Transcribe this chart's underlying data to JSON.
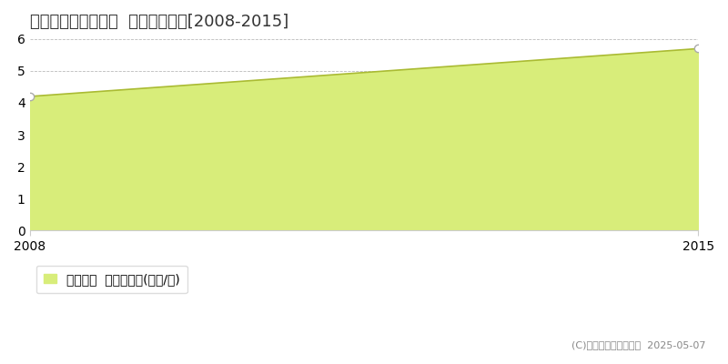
{
  "title": "東田川郡庄内町清川  住宅価格推移[2008-2015]",
  "x_values": [
    2008,
    2015
  ],
  "y_values": [
    4.2,
    5.7
  ],
  "area_color": "#d8ed7a",
  "line_color": "#aabb33",
  "marker_color": "#ffffff",
  "marker_edge_color": "#aaaaaa",
  "xlim": [
    2008,
    2015
  ],
  "ylim": [
    0,
    6
  ],
  "yticks": [
    0,
    1,
    2,
    3,
    4,
    5,
    6
  ],
  "xticks": [
    2008,
    2015
  ],
  "grid_color": "#bbbbbb",
  "background_color": "#ffffff",
  "plot_bg_color": "#ffffff",
  "legend_label": "住宅価格  平均嵪単価(万円/嵪)",
  "copyright_text": "(C)土地価格ドットコム  2025-05-07",
  "title_fontsize": 13,
  "tick_fontsize": 10,
  "legend_fontsize": 10
}
